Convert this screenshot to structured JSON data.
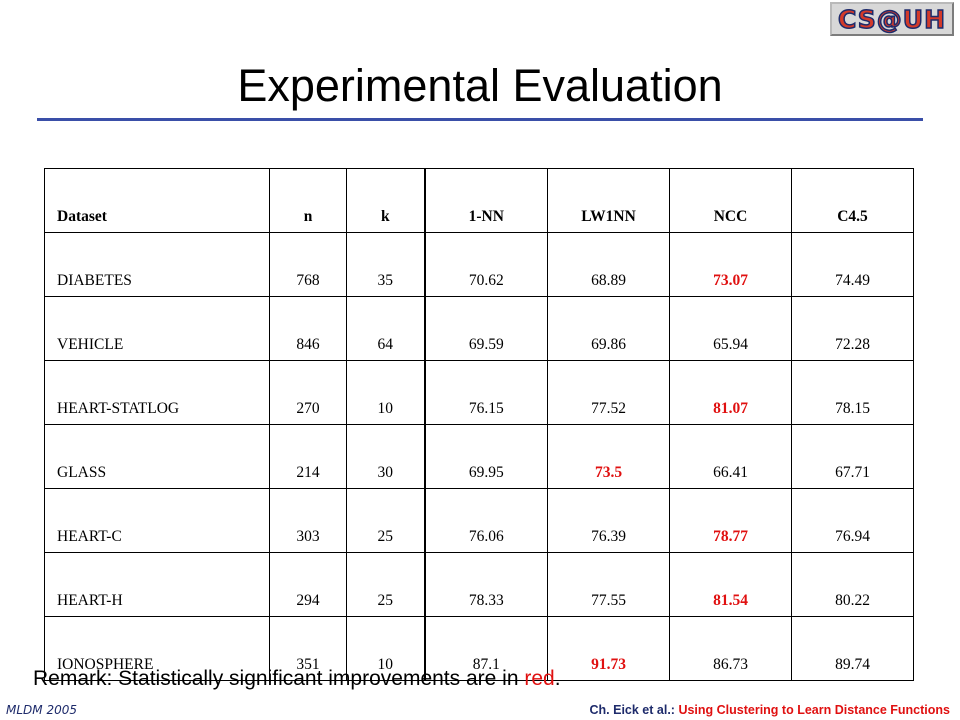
{
  "logo": {
    "text": "CS@UH"
  },
  "title": "Experimental Evaluation",
  "table": {
    "headers": [
      "Dataset",
      "n",
      "k",
      "1-NN",
      "LW1NN",
      "NCC",
      "C4.5"
    ],
    "rows": [
      [
        "DIABETES",
        "768",
        "35",
        "70.62",
        "68.89",
        "73.07",
        "74.49"
      ],
      [
        "VEHICLE",
        "846",
        "64",
        "69.59",
        "69.86",
        "65.94",
        "72.28"
      ],
      [
        "HEART-STATLOG",
        "270",
        "10",
        "76.15",
        "77.52",
        "81.07",
        "78.15"
      ],
      [
        "GLASS",
        "214",
        "30",
        "69.95",
        "73.5",
        "66.41",
        "67.71"
      ],
      [
        "HEART-C",
        "303",
        "25",
        "76.06",
        "76.39",
        "78.77",
        "76.94"
      ],
      [
        "HEART-H",
        "294",
        "25",
        "78.33",
        "77.55",
        "81.54",
        "80.22"
      ],
      [
        "IONOSPHERE",
        "351",
        "10",
        "87.1",
        "91.73",
        "86.73",
        "89.74"
      ]
    ],
    "highlight_color": "#e01010"
  },
  "remark": {
    "prefix": "Remark: Statistically significant improvements are in ",
    "red_word": "red",
    "suffix": "."
  },
  "footer": {
    "left": "MLDM 2005",
    "author": "Ch. Eick et al.",
    "separator": ": ",
    "work": "Using Clustering to Learn Distance Functions"
  }
}
